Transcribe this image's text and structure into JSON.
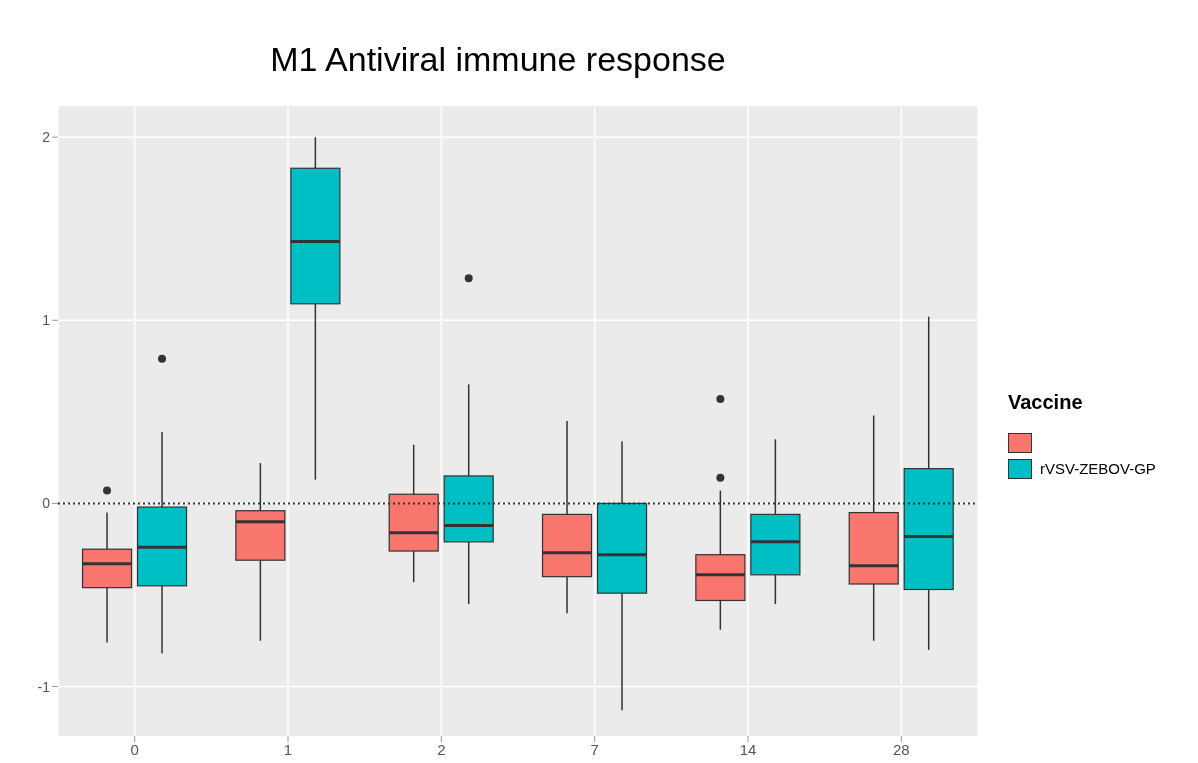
{
  "chart_data": {
    "type": "box",
    "title": "M1 Antiviral immune response",
    "categories": [
      "0",
      "1",
      "2",
      "7",
      "14",
      "28"
    ],
    "series": [
      {
        "color": "#f8766d",
        "boxes": [
          {
            "low": -0.76,
            "q1": -0.46,
            "median": -0.33,
            "q3": -0.25,
            "high": -0.05,
            "outliers": [
              0.07
            ]
          },
          {
            "low": -0.75,
            "q1": -0.31,
            "median": -0.1,
            "q3": -0.04,
            "high": 0.22
          },
          {
            "low": -0.43,
            "q1": -0.26,
            "median": -0.16,
            "q3": 0.05,
            "high": 0.32
          },
          {
            "low": -0.6,
            "q1": -0.4,
            "median": -0.27,
            "q3": -0.06,
            "high": 0.45
          },
          {
            "low": -0.69,
            "q1": -0.53,
            "median": -0.39,
            "q3": -0.28,
            "high": 0.07,
            "outliers": [
              0.57,
              0.14
            ]
          },
          {
            "low": -0.75,
            "q1": -0.44,
            "median": -0.34,
            "q3": -0.05,
            "high": 0.48
          }
        ]
      },
      {
        "name": "rVSV-ZEBOV-GP",
        "color": "#00bfc4",
        "boxes": [
          {
            "low": -0.82,
            "q1": -0.45,
            "median": -0.24,
            "q3": -0.02,
            "high": 0.39,
            "outliers": [
              0.79
            ]
          },
          {
            "low": 0.13,
            "q1": 1.09,
            "median": 1.43,
            "q3": 1.83,
            "high": 2.0
          },
          {
            "low": -0.55,
            "q1": -0.21,
            "median": -0.12,
            "q3": 0.15,
            "high": 0.65,
            "outliers": [
              1.23
            ]
          },
          {
            "low": -1.13,
            "q1": -0.49,
            "median": -0.28,
            "q3": 0.0,
            "high": 0.34
          },
          {
            "low": -0.55,
            "q1": -0.39,
            "median": -0.21,
            "q3": -0.06,
            "high": 0.35
          },
          {
            "low": -0.8,
            "q1": -0.47,
            "median": -0.18,
            "q3": 0.19,
            "high": 1.02
          }
        ]
      }
    ],
    "ylim": [
      -1.27,
      2.17
    ],
    "yticks": [
      -1,
      0,
      1,
      2
    ],
    "grid": true,
    "legend": "right",
    "legend_title": "Vaccine",
    "ref_lines": [
      {
        "axis": "y",
        "value": 0,
        "line_style": "dotted",
        "color": "#333333"
      }
    ]
  }
}
